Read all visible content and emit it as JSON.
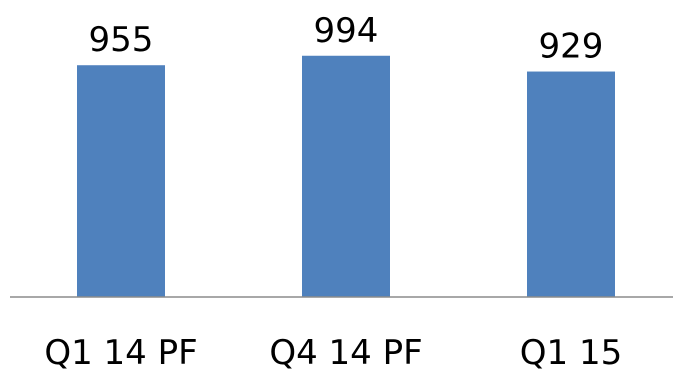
{
  "chart_data": {
    "type": "bar",
    "categories": [
      "Q1 14 PF",
      "Q4 14 PF",
      "Q1 15"
    ],
    "values": [
      955,
      994,
      929
    ],
    "series": [
      {
        "values": [
          955,
          994,
          929
        ]
      }
    ],
    "title": "",
    "xlabel": "",
    "ylabel": "",
    "ylim": [
      0,
      1050
    ],
    "grid": false,
    "legend": "none",
    "colors": {
      "bar": "#4f81bd",
      "axis": "#8c8c8c"
    }
  }
}
